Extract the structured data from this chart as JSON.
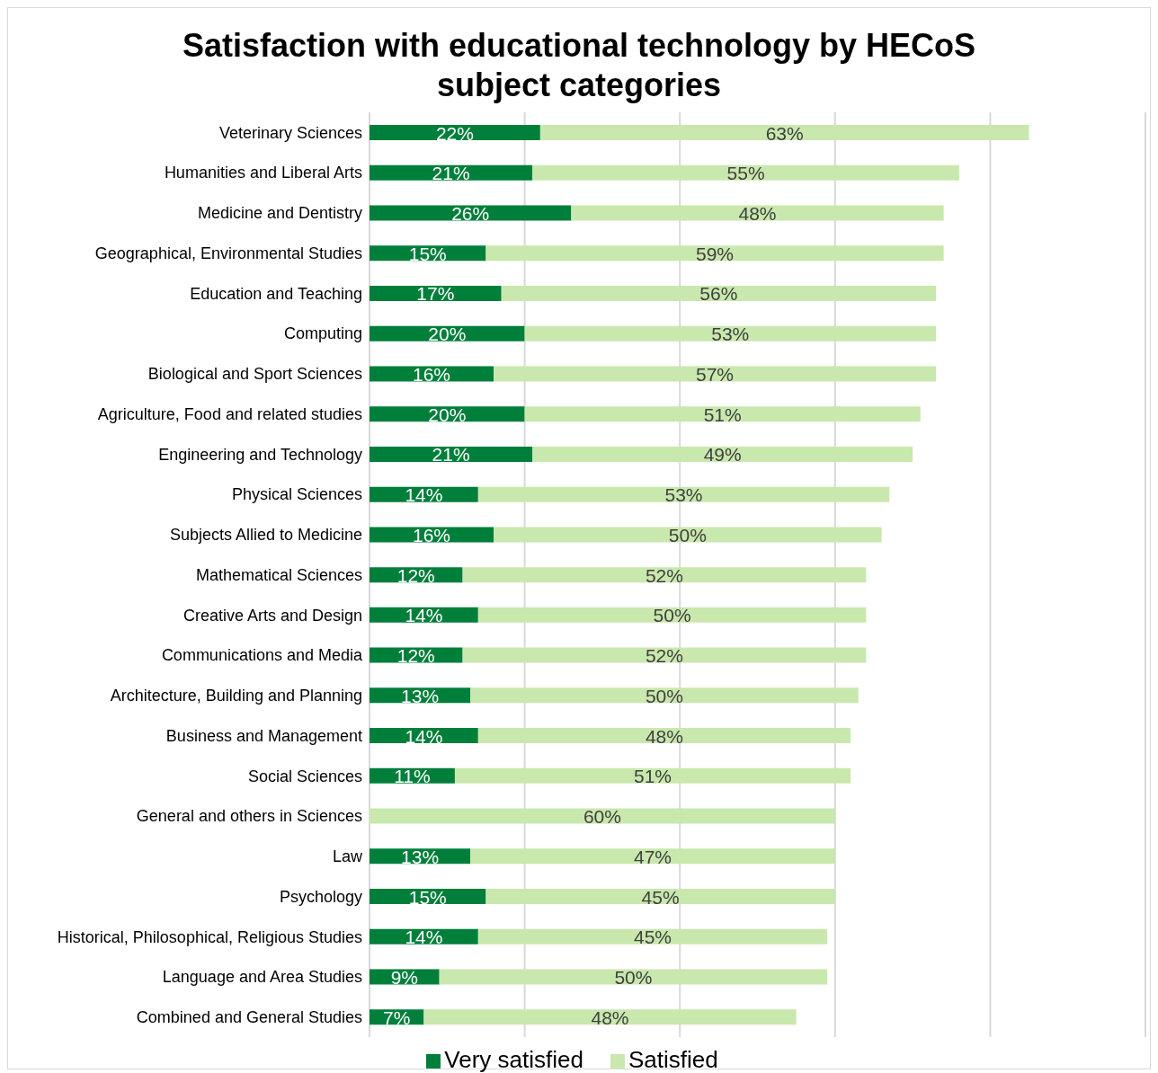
{
  "chart_data": {
    "type": "bar",
    "title": "Satisfaction with educational technology by HECoS subject categories",
    "orientation": "horizontal",
    "stacked": true,
    "categories": [
      "Veterinary Sciences",
      "Humanities and Liberal Arts",
      "Medicine and Dentistry",
      "Geographical, Environmental Studies",
      "Education and Teaching",
      "Computing",
      "Biological and Sport Sciences",
      "Agriculture, Food and related studies",
      "Engineering and Technology",
      "Physical Sciences",
      "Subjects Allied to Medicine",
      "Mathematical Sciences",
      "Creative Arts and Design",
      "Communications and Media",
      "Architecture, Building and Planning",
      "Business and Management",
      "Social Sciences",
      "General and others in Sciences",
      "Law",
      "Psychology",
      "Historical, Philosophical, Religious Studies",
      "Language and Area Studies",
      "Combined and General Studies"
    ],
    "series": [
      {
        "name": "Very satisfied",
        "color": "#007f3b",
        "values": [
          22,
          21,
          26,
          15,
          17,
          20,
          16,
          20,
          21,
          14,
          16,
          12,
          14,
          12,
          13,
          14,
          11,
          null,
          13,
          15,
          14,
          9,
          7
        ],
        "value_labels": [
          "22%",
          "21%",
          "26%",
          "15%",
          "17%",
          "20%",
          "16%",
          "20%",
          "21%",
          "14%",
          "16%",
          "12%",
          "14%",
          "12%",
          "13%",
          "14%",
          "11%",
          null,
          "13%",
          "15%",
          "14%",
          "9%",
          "7%"
        ]
      },
      {
        "name": "Satisfied",
        "color": "#c9e8ad",
        "values": [
          63,
          55,
          48,
          59,
          56,
          53,
          57,
          51,
          49,
          53,
          50,
          52,
          50,
          52,
          50,
          48,
          51,
          60,
          47,
          45,
          45,
          50,
          48
        ],
        "value_labels": [
          "63%",
          "55%",
          "48%",
          "59%",
          "56%",
          "53%",
          "57%",
          "51%",
          "49%",
          "53%",
          "50%",
          "52%",
          "50%",
          "52%",
          "50%",
          "48%",
          "51%",
          "60%",
          "47%",
          "45%",
          "45%",
          "50%",
          "48%"
        ]
      }
    ],
    "xlim": [
      0,
      100
    ],
    "xticks": [
      {
        "value": 0,
        "label": null
      },
      {
        "value": 20,
        "label": null
      },
      {
        "value": 40,
        "label": null
      },
      {
        "value": 60,
        "label": null
      },
      {
        "value": 80,
        "label": null
      },
      {
        "value": 100,
        "label": null
      }
    ],
    "grid": "x",
    "legend": "bottom",
    "tick_labels": "y"
  }
}
